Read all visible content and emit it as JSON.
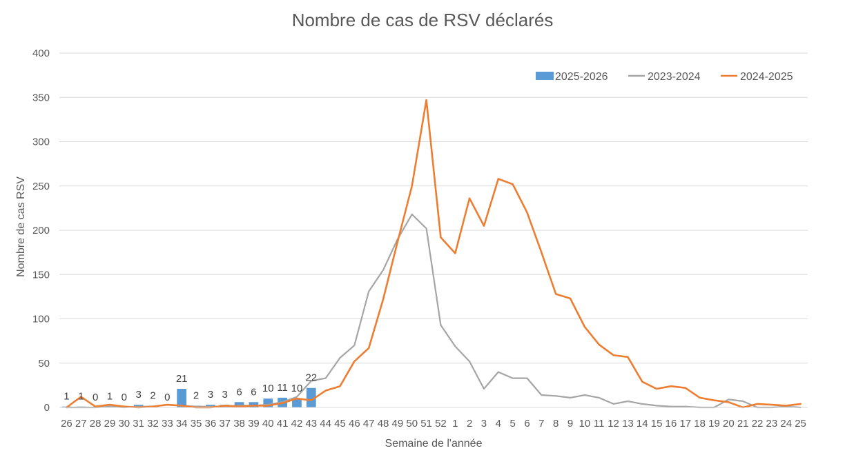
{
  "chart_data": {
    "type": "bar+line",
    "title": "Nombre de cas de RSV déclarés",
    "xlabel": "Semaine de l'année",
    "ylabel": "Nombre de cas RSV",
    "ylim": [
      0,
      400
    ],
    "yticks": [
      0,
      50,
      100,
      150,
      200,
      250,
      300,
      350,
      400
    ],
    "grid": true,
    "legend_position": "top-right",
    "categories": [
      "26",
      "27",
      "28",
      "29",
      "30",
      "31",
      "32",
      "33",
      "34",
      "35",
      "36",
      "37",
      "38",
      "39",
      "40",
      "41",
      "42",
      "43",
      "44",
      "45",
      "46",
      "47",
      "48",
      "49",
      "50",
      "51",
      "52",
      "1",
      "2",
      "3",
      "4",
      "5",
      "6",
      "7",
      "8",
      "9",
      "10",
      "11",
      "12",
      "13",
      "14",
      "15",
      "16",
      "17",
      "18",
      "19",
      "20",
      "21",
      "22",
      "23",
      "24",
      "25"
    ],
    "series": [
      {
        "name": "2025-2026",
        "kind": "bar",
        "color": "#5B9BD5",
        "values": [
          1,
          1,
          0,
          1,
          0,
          3,
          2,
          0,
          21,
          2,
          3,
          3,
          6,
          6,
          10,
          11,
          10,
          22,
          null,
          null,
          null,
          null,
          null,
          null,
          null,
          null,
          null,
          null,
          null,
          null,
          null,
          null,
          null,
          null,
          null,
          null,
          null,
          null,
          null,
          null,
          null,
          null,
          null,
          null,
          null,
          null,
          null,
          null,
          null,
          null,
          null,
          null
        ]
      },
      {
        "name": "2023-2024",
        "kind": "line",
        "color": "#A5A5A5",
        "values": [
          0,
          0,
          0,
          1,
          0,
          1,
          1,
          3,
          2,
          1,
          1,
          1,
          2,
          2,
          3,
          6,
          12,
          30,
          33,
          56,
          70,
          131,
          155,
          190,
          218,
          202,
          93,
          69,
          52,
          21,
          40,
          33,
          33,
          14,
          13,
          11,
          14,
          11,
          4,
          7,
          4,
          2,
          1,
          1,
          0,
          0,
          9,
          7,
          0,
          0,
          1,
          0
        ]
      },
      {
        "name": "2024-2025",
        "kind": "line",
        "color": "#ED7D31",
        "values": [
          0,
          12,
          1,
          3,
          1,
          0,
          1,
          3,
          2,
          0,
          0,
          2,
          1,
          2,
          2,
          5,
          10,
          8,
          19,
          24,
          52,
          67,
          122,
          187,
          250,
          347,
          192,
          174,
          236,
          205,
          258,
          252,
          220,
          175,
          128,
          123,
          91,
          71,
          59,
          57,
          29,
          21,
          24,
          22,
          11,
          8,
          6,
          0,
          4,
          3,
          2,
          4
        ]
      }
    ]
  },
  "legend": {
    "items": [
      "2025-2026",
      "2023-2024",
      "2024-2025"
    ]
  }
}
